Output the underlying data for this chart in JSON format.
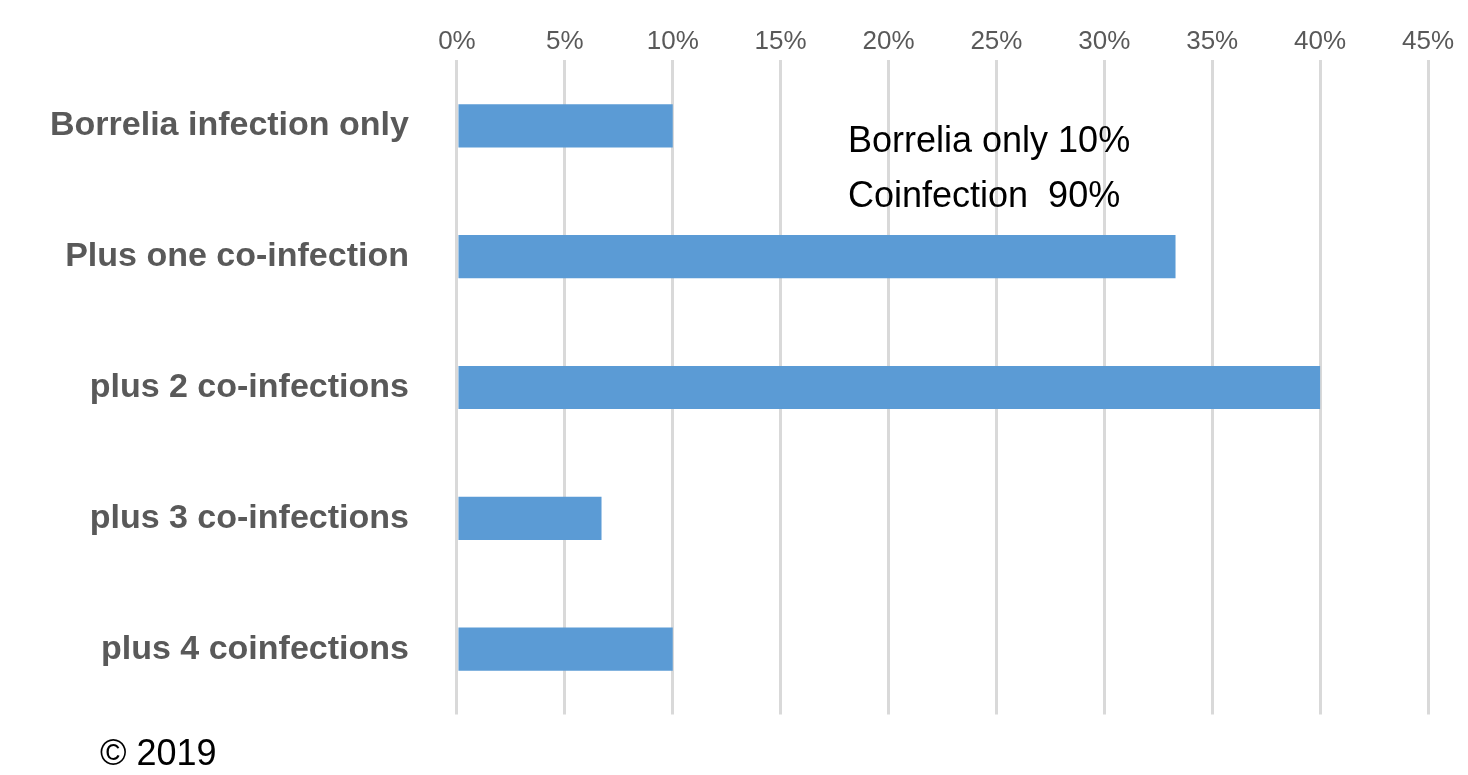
{
  "chart_data": {
    "type": "bar",
    "orientation": "horizontal",
    "categories": [
      "Borrelia infection only",
      "Plus one co-infection",
      "plus 2 co-infections",
      "plus 3 co-infections",
      "plus 4 coinfections"
    ],
    "values": [
      10,
      33.3,
      40,
      6.7,
      10
    ],
    "color": "#5b9bd5",
    "xlim": [
      0,
      45
    ],
    "xticks": [
      {
        "value": 0,
        "label": "0%"
      },
      {
        "value": 5,
        "label": "5%"
      },
      {
        "value": 10,
        "label": "10%"
      },
      {
        "value": 15,
        "label": "15%"
      },
      {
        "value": 20,
        "label": "20%"
      },
      {
        "value": 25,
        "label": "25%"
      },
      {
        "value": 30,
        "label": "30%"
      },
      {
        "value": 35,
        "label": "35%"
      },
      {
        "value": 40,
        "label": "40%"
      },
      {
        "value": 45,
        "label": "45%"
      }
    ],
    "grid": "x",
    "legend": false,
    "annotations": [
      "Borrelia only 10%",
      "Coinfection  90%",
      "© 2019"
    ]
  }
}
